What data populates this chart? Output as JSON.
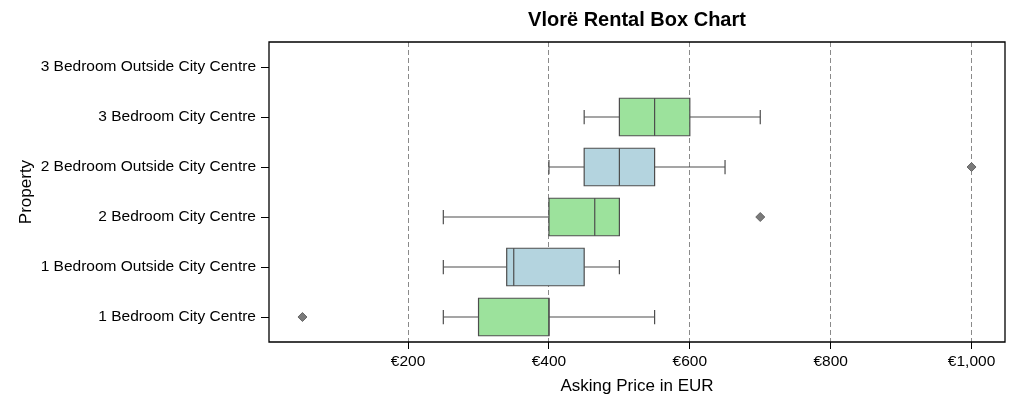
{
  "chart_data": {
    "type": "box",
    "title": "Vlorë Rental Box Chart",
    "xlabel": "Asking Price in EUR",
    "ylabel": "Property",
    "orientation": "horizontal",
    "categories": [
      "3 Bedroom Outside City Centre",
      "3 Bedroom City Centre",
      "2 Bedroom Outside City Centre",
      "2 Bedroom City Centre",
      "1 Bedroom Outside City Centre",
      "1 Bedroom City Centre"
    ],
    "boxes": [
      null,
      {
        "low": 450,
        "q1": 500,
        "median": 550,
        "q3": 600,
        "high": 700
      },
      {
        "low": 400,
        "q1": 450,
        "median": 500,
        "q3": 550,
        "high": 650,
        "outliers": [
          1000
        ]
      },
      {
        "low": 250,
        "q1": 400,
        "median": 465,
        "q3": 500,
        "high": 500,
        "outliers": [
          700
        ]
      },
      {
        "low": 250,
        "q1": 340,
        "median": 350,
        "q3": 450,
        "high": 500
      },
      {
        "low": 250,
        "q1": 300,
        "median": 400,
        "q3": 400,
        "high": 550,
        "outliers": [
          50
        ]
      }
    ],
    "colors": [
      null,
      "#9ce29c",
      "#b4d4df",
      "#9ce29c",
      "#b4d4df",
      "#9ce29c"
    ],
    "xlim": [
      2.5,
      1047.5
    ],
    "xticks": [
      {
        "value": 200,
        "label": "€200"
      },
      {
        "value": 400,
        "label": "€400"
      },
      {
        "value": 600,
        "label": "€600"
      },
      {
        "value": 800,
        "label": "€800"
      },
      {
        "value": 1000,
        "label": "€1,000"
      }
    ],
    "grid": "x",
    "marker": "diamond"
  }
}
